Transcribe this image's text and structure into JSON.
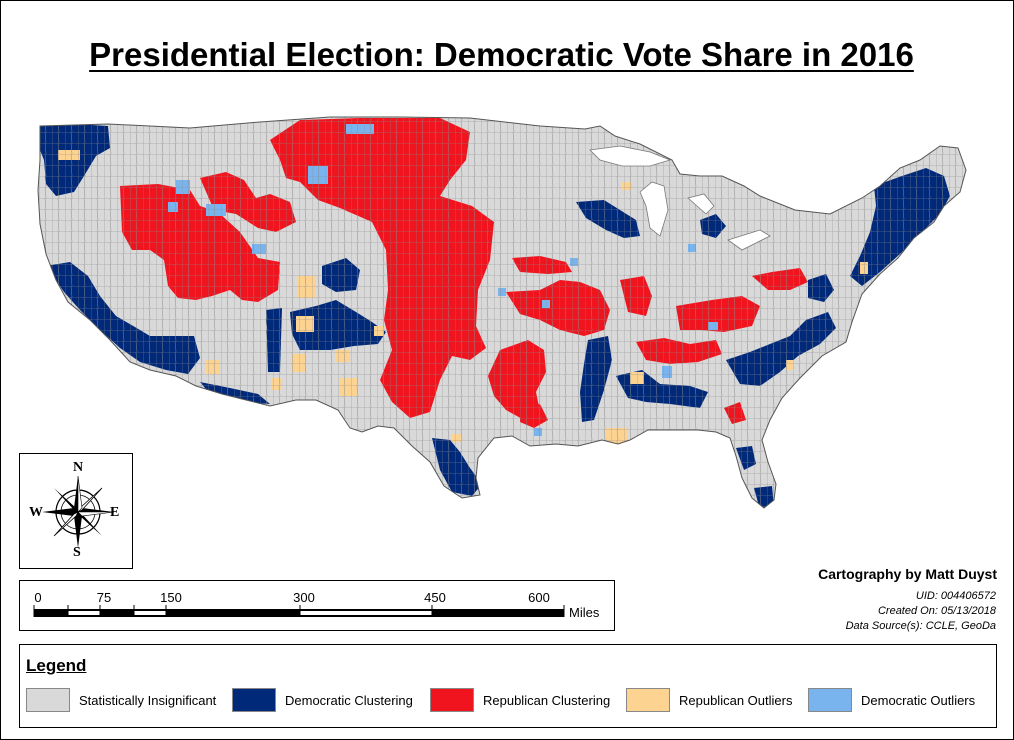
{
  "title": "Presidential Election: Democratic Vote Share in 2016",
  "colors": {
    "insignificant": "#d9d9d9",
    "democratic_clustering": "#00297a",
    "republican_clustering": "#f0141e",
    "republican_outliers": "#fcd390",
    "democratic_outliers": "#7ab4ef",
    "border": "#7a7a7a"
  },
  "compass": {
    "north": "N",
    "south": "S",
    "east": "E",
    "west": "W"
  },
  "scale_bar": {
    "ticks": [
      "0",
      "75",
      "150",
      "300",
      "450",
      "600"
    ],
    "unit": "Miles"
  },
  "credits": {
    "author": "Cartography by Matt Duyst",
    "uid": "UID: 004406572",
    "created": "Created On: 05/13/2018",
    "sources": "Data Source(s): CCLE, GeoDa"
  },
  "legend": {
    "title": "Legend",
    "items": [
      {
        "label": "Statistically Insignificant",
        "color": "#d9d9d9"
      },
      {
        "label": "Democratic Clustering",
        "color": "#00297a"
      },
      {
        "label": "Republican Clustering",
        "color": "#f0141e"
      },
      {
        "label": "Republican Outliers",
        "color": "#fcd390"
      },
      {
        "label": "Democratic Outliers",
        "color": "#7ab4ef"
      }
    ]
  }
}
